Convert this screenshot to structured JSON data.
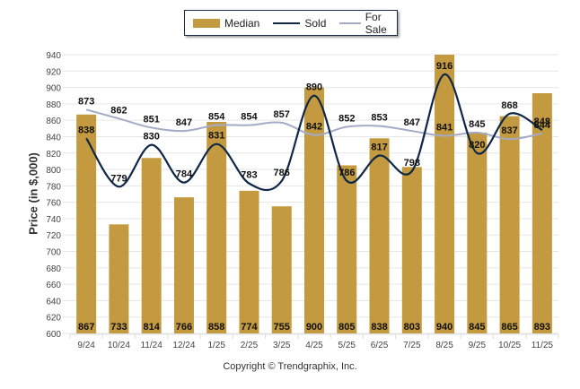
{
  "chart_data": {
    "type": "bar",
    "title": "",
    "xlabel": "",
    "ylabel": "Price (in $,000)",
    "ylim": [
      600,
      940
    ],
    "yticks": [
      600,
      620,
      640,
      660,
      680,
      700,
      720,
      740,
      760,
      780,
      800,
      820,
      840,
      860,
      880,
      900,
      920,
      940
    ],
    "grid": true,
    "legend_position": "top-center",
    "categories": [
      "9/24",
      "10/24",
      "11/24",
      "12/24",
      "1/25",
      "2/25",
      "3/25",
      "4/25",
      "5/25",
      "6/25",
      "7/25",
      "8/25",
      "9/25",
      "10/25",
      "11/25"
    ],
    "series": [
      {
        "name": "Median",
        "kind": "bar",
        "color": "#c39a3f",
        "values": [
          867,
          733,
          814,
          766,
          858,
          774,
          755,
          900,
          805,
          838,
          803,
          940,
          845,
          865,
          893
        ]
      },
      {
        "name": "Sold",
        "kind": "line",
        "color": "#0f2747",
        "values": [
          838,
          779,
          830,
          784,
          831,
          783,
          786,
          890,
          786,
          817,
          798,
          916,
          820,
          868,
          848
        ]
      },
      {
        "name": "For Sale",
        "kind": "line",
        "color": "#a3abc6",
        "values": [
          873,
          862,
          851,
          847,
          854,
          854,
          857,
          842,
          852,
          853,
          847,
          841,
          845,
          837,
          844
        ]
      }
    ]
  },
  "legend": {
    "median": "Median",
    "sold": "Sold",
    "for_sale": "For Sale"
  },
  "copyright": "Copyright © Trendgraphix, Inc."
}
